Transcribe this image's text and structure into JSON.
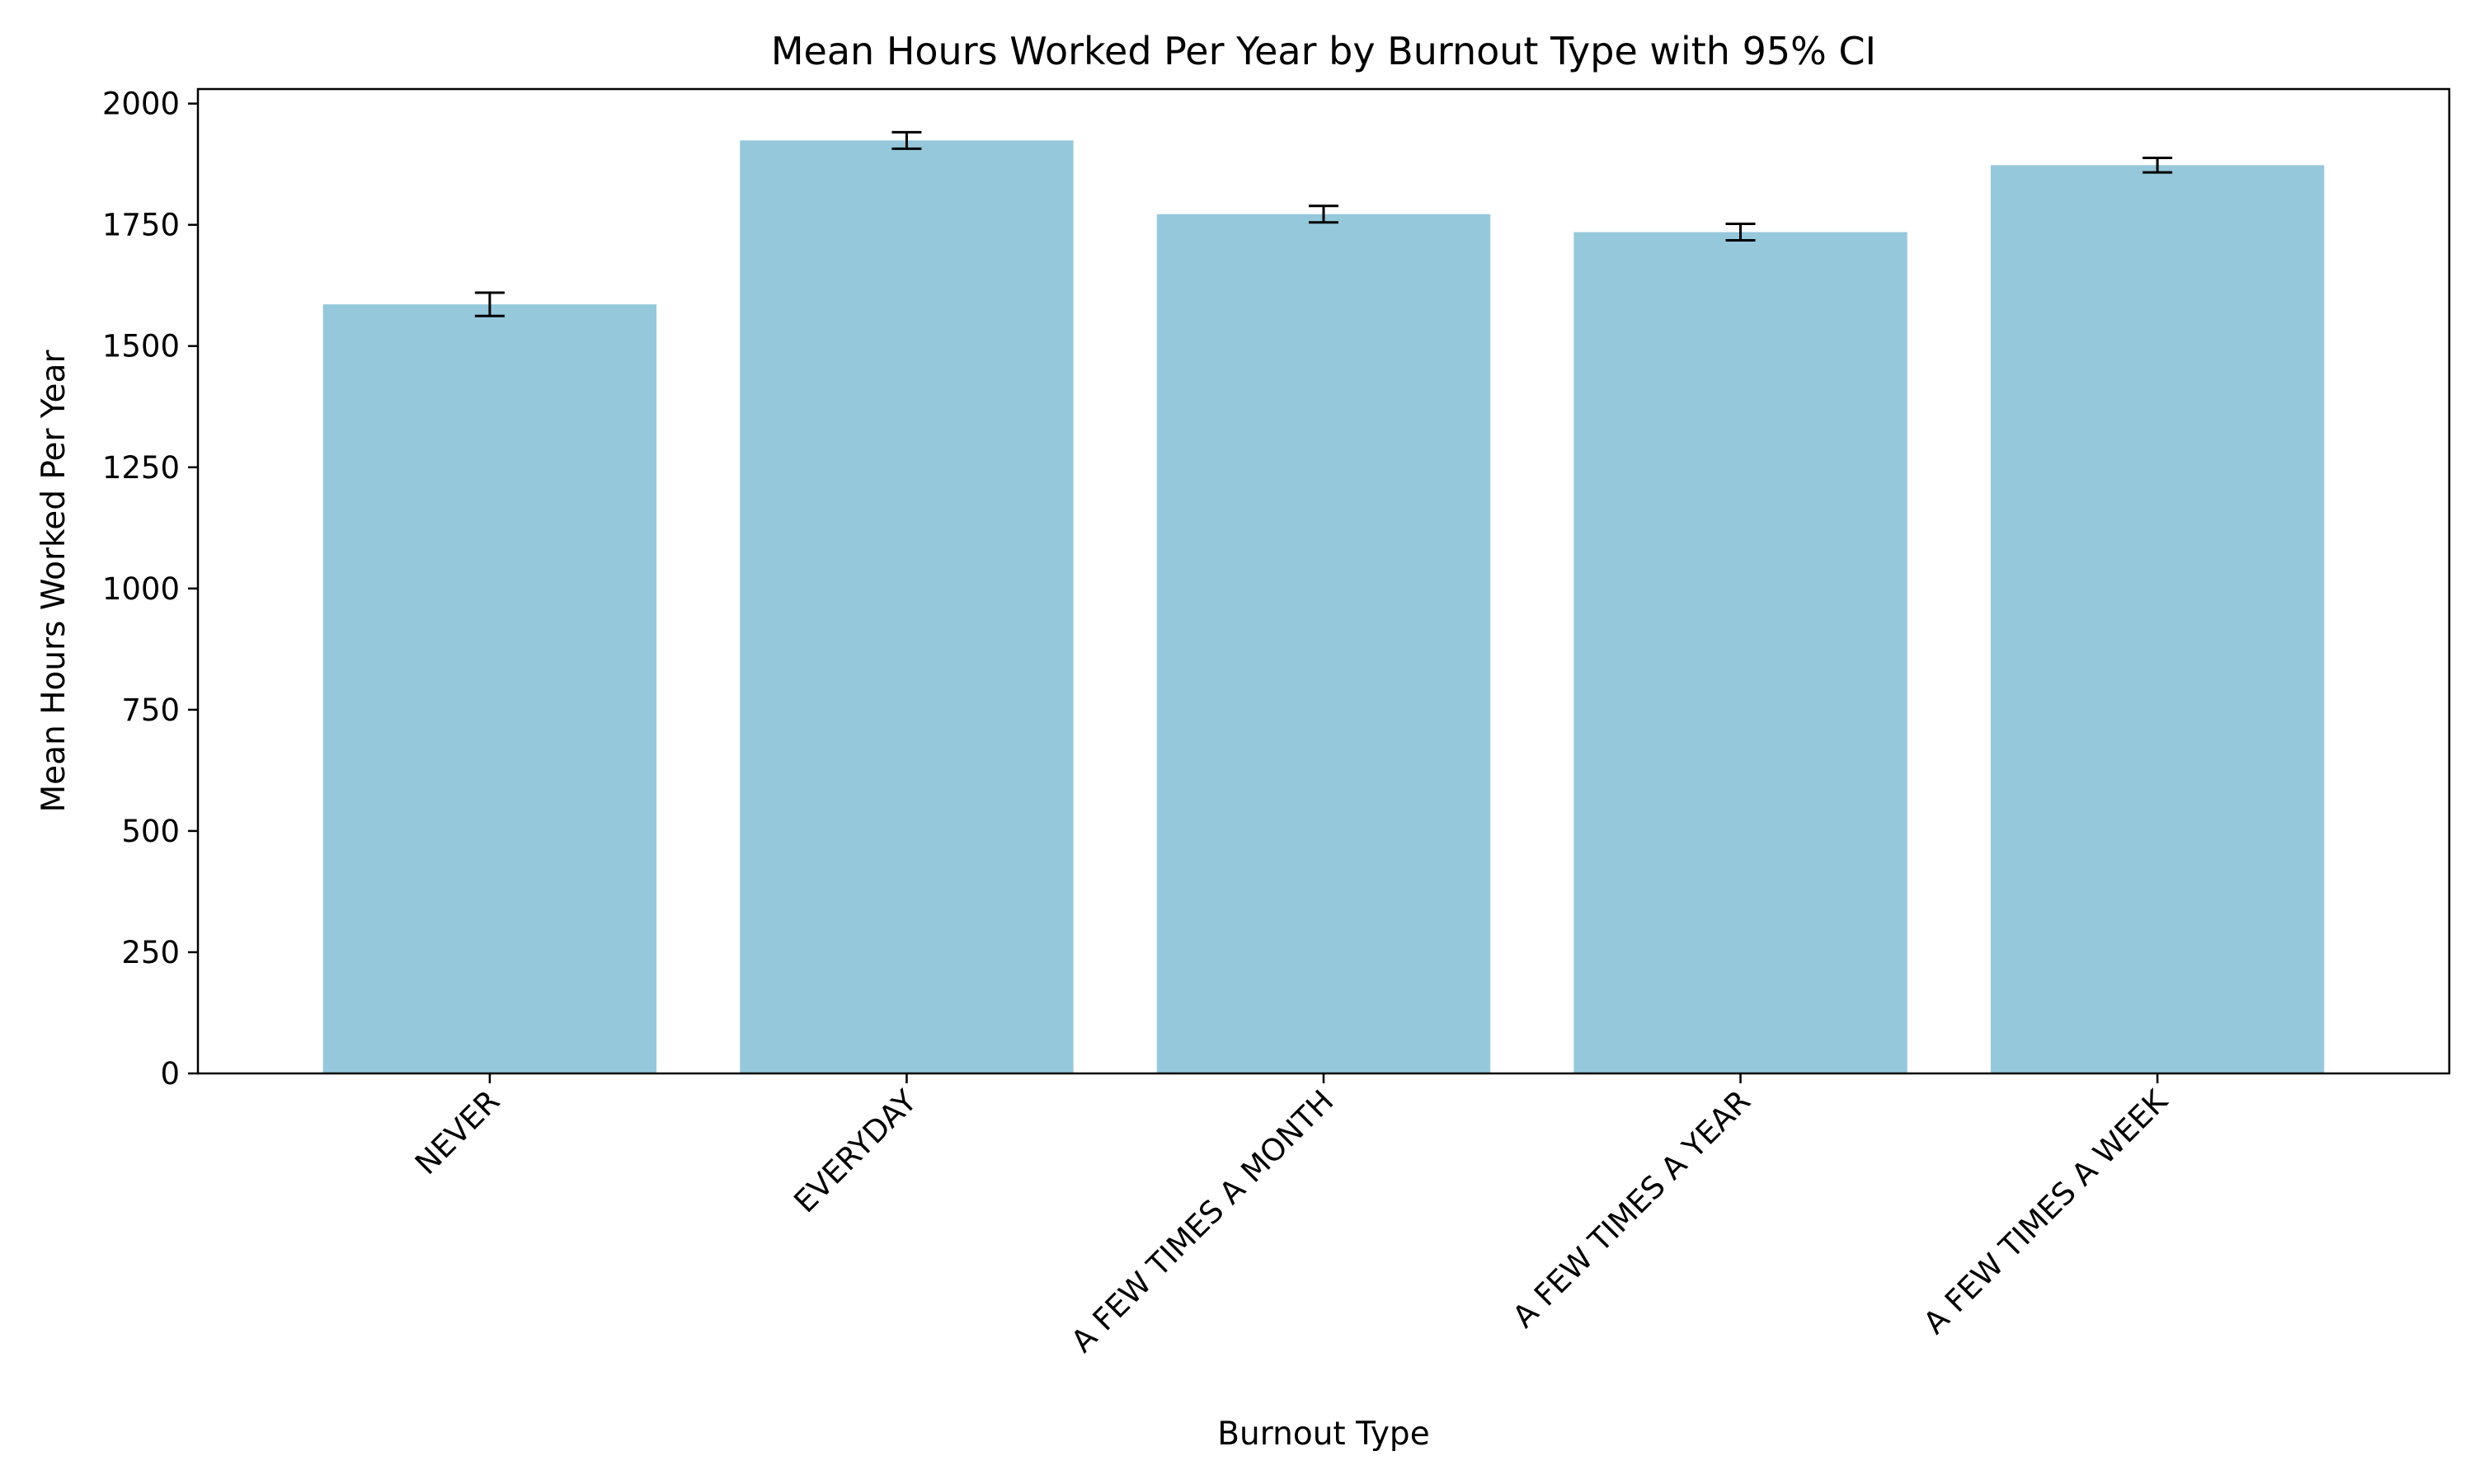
{
  "chart_data": {
    "type": "bar",
    "title": "Mean Hours Worked Per Year by Burnout Type with 95% CI",
    "xlabel": "Burnout Type",
    "ylabel": "Mean Hours Worked Per Year",
    "categories": [
      "NEVER",
      "EVERYDAY",
      "A FEW TIMES A MONTH",
      "A FEW TIMES A YEAR",
      "A FEW TIMES A WEEK"
    ],
    "values": [
      1586,
      1924,
      1772,
      1735,
      1873
    ],
    "ci_low": [
      1562,
      1907,
      1755,
      1718,
      1858
    ],
    "ci_high": [
      1610,
      1941,
      1789,
      1752,
      1888
    ],
    "ylim": [
      0,
      2030
    ],
    "yticks": [
      0,
      250,
      500,
      750,
      1000,
      1250,
      1500,
      1750,
      2000
    ],
    "ytick_labels": [
      "0",
      "250",
      "500",
      "750",
      "1000",
      "1250",
      "1500",
      "1750",
      "2000"
    ],
    "grid": false,
    "legend": "none",
    "bar_color": "#96c8dc",
    "errorbar_color": "#000000"
  }
}
